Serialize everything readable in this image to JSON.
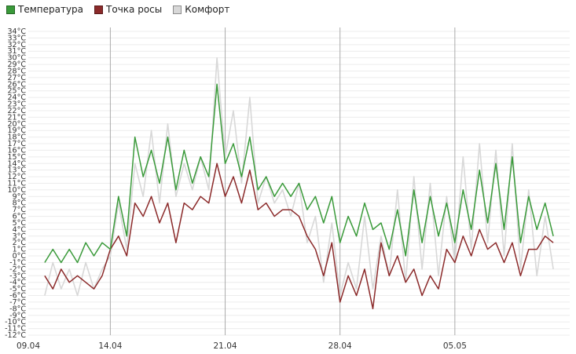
{
  "chart_data": {
    "type": "line",
    "title": "",
    "xlabel": "",
    "ylabel": "",
    "ylim": [
      -12,
      34
    ],
    "y_unit": "°C",
    "x_range": [
      "09.04",
      "12.05"
    ],
    "x_ticks": [
      "09.04",
      "14.04",
      "21.04",
      "28.04",
      "05.05"
    ],
    "grid": true,
    "legend_position": "top-left",
    "series": [
      {
        "name": "Температура",
        "color": "#3a9a3a",
        "x": [
          "10.04",
          "10.5",
          "11.04",
          "11.5",
          "12.04",
          "12.5",
          "13.04",
          "13.5",
          "14.04",
          "14.5",
          "15.04",
          "15.5",
          "16.04",
          "16.5",
          "17.04",
          "17.5",
          "18.04",
          "18.5",
          "19.04",
          "19.5",
          "20.04",
          "20.5",
          "21.04",
          "21.5",
          "22.04",
          "22.5",
          "23.04",
          "23.5",
          "24.04",
          "24.5",
          "25.04",
          "25.5",
          "26.04",
          "26.5",
          "27.04",
          "27.5",
          "28.04",
          "28.5",
          "29.04",
          "29.5",
          "30.04",
          "30.5",
          "01.05",
          "01.5",
          "02.05",
          "02.5",
          "03.05",
          "03.5",
          "04.05",
          "04.5",
          "05.05",
          "05.5",
          "06.05",
          "06.5",
          "07.05",
          "07.5",
          "08.05",
          "08.5",
          "09.05",
          "09.5",
          "10.05",
          "10.5",
          "11.05"
        ],
        "values": [
          -1,
          1,
          -1,
          1,
          -1,
          2,
          0,
          2,
          1,
          9,
          3,
          18,
          12,
          16,
          11,
          18,
          10,
          16,
          11,
          15,
          12,
          26,
          14,
          17,
          12,
          18,
          10,
          12,
          9,
          11,
          9,
          11,
          7,
          9,
          5,
          9,
          2,
          6,
          3,
          8,
          4,
          5,
          1,
          7,
          0,
          10,
          2,
          9,
          3,
          8,
          2,
          10,
          4,
          13,
          5,
          14,
          4,
          15,
          2,
          9,
          4,
          8,
          3
        ],
        "color_key": "green"
      },
      {
        "name": "Точка росы",
        "color": "#8b2a2a",
        "x": [
          "10.04",
          "10.5",
          "11.04",
          "11.5",
          "12.04",
          "12.5",
          "13.04",
          "13.5",
          "14.04",
          "14.5",
          "15.04",
          "15.5",
          "16.04",
          "16.5",
          "17.04",
          "17.5",
          "18.04",
          "18.5",
          "19.04",
          "19.5",
          "20.04",
          "20.5",
          "21.04",
          "21.5",
          "22.04",
          "22.5",
          "23.04",
          "23.5",
          "24.04",
          "24.5",
          "25.04",
          "25.5",
          "26.04",
          "26.5",
          "27.04",
          "27.5",
          "28.04",
          "28.5",
          "29.04",
          "29.5",
          "30.04",
          "30.5",
          "01.05",
          "01.5",
          "02.05",
          "02.5",
          "03.05",
          "03.5",
          "04.05",
          "04.5",
          "05.05",
          "05.5",
          "06.05",
          "06.5",
          "07.05",
          "07.5",
          "08.05",
          "08.5",
          "09.05",
          "09.5",
          "10.05",
          "10.5",
          "11.05"
        ],
        "values": [
          -3,
          -5,
          -2,
          -4,
          -3,
          -4,
          -5,
          -3,
          1,
          3,
          0,
          8,
          6,
          9,
          5,
          8,
          2,
          8,
          7,
          9,
          8,
          14,
          9,
          12,
          8,
          13,
          7,
          8,
          6,
          7,
          7,
          6,
          3,
          1,
          -3,
          2,
          -7,
          -3,
          -6,
          -2,
          -8,
          2,
          -3,
          0,
          -4,
          -2,
          -6,
          -3,
          -5,
          1,
          -1,
          3,
          0,
          4,
          1,
          2,
          -1,
          2,
          -3,
          1,
          1,
          3,
          2
        ]
      },
      {
        "name": "Комфорт",
        "color": "#d8d8d8",
        "x": [
          "10.04",
          "10.5",
          "11.04",
          "11.5",
          "12.04",
          "12.5",
          "13.04",
          "13.5",
          "14.04",
          "14.5",
          "15.04",
          "15.5",
          "16.04",
          "16.5",
          "17.04",
          "17.5",
          "18.04",
          "18.5",
          "19.04",
          "19.5",
          "20.04",
          "20.5",
          "21.04",
          "21.5",
          "22.04",
          "22.5",
          "23.04",
          "23.5",
          "24.04",
          "24.5",
          "25.04",
          "25.5",
          "26.04",
          "26.5",
          "27.04",
          "27.5",
          "28.04",
          "28.5",
          "29.04",
          "29.5",
          "30.04",
          "30.5",
          "01.05",
          "01.5",
          "02.05",
          "02.5",
          "03.05",
          "03.5",
          "04.05",
          "04.5",
          "05.05",
          "05.5",
          "06.05",
          "06.5",
          "07.05",
          "07.5",
          "08.05",
          "08.5",
          "09.05",
          "09.5",
          "10.05",
          "10.5",
          "11.05"
        ],
        "values": [
          -6,
          -1,
          -5,
          -2,
          -6,
          -1,
          -5,
          -2,
          0,
          8,
          1,
          14,
          9,
          19,
          8,
          20,
          9,
          14,
          10,
          15,
          10,
          30,
          15,
          22,
          11,
          24,
          8,
          12,
          8,
          10,
          6,
          11,
          2,
          6,
          -4,
          5,
          -6,
          -1,
          -5,
          6,
          -5,
          3,
          -3,
          10,
          -4,
          12,
          -2,
          11,
          -3,
          9,
          -1,
          15,
          1,
          17,
          2,
          16,
          0,
          17,
          -2,
          10,
          -3,
          6,
          -2
        ]
      }
    ]
  },
  "legend": [
    {
      "label": "Температура",
      "color": "#3a9a3a"
    },
    {
      "label": "Точка росы",
      "color": "#8b2a2a"
    },
    {
      "label": "Комфорт",
      "color": "#d8d8d8"
    }
  ]
}
